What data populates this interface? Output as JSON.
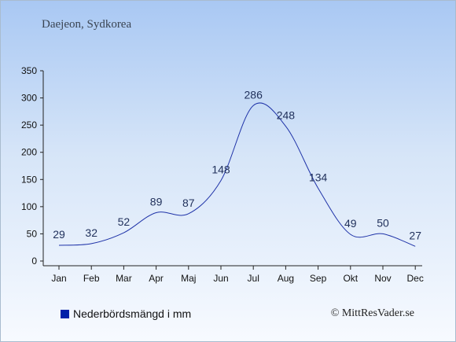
{
  "title": "Daejeon, Sydkorea",
  "credit": "© MittResVader.se",
  "legend": {
    "label": "Nederbördsmängd i mm",
    "color": "#0020a8"
  },
  "colors": {
    "line": "#1f33a8",
    "axis": "#222222"
  },
  "chart_data": {
    "type": "line",
    "categories": [
      "Jan",
      "Feb",
      "Mar",
      "Apr",
      "Maj",
      "Jun",
      "Jul",
      "Aug",
      "Sep",
      "Okt",
      "Nov",
      "Dec"
    ],
    "series": [
      {
        "name": "Nederbördsmängd i mm",
        "values": [
          29,
          32,
          52,
          89,
          87,
          148,
          286,
          248,
          134,
          49,
          50,
          27
        ]
      }
    ],
    "yticks": [
      0,
      50,
      100,
      150,
      200,
      250,
      300,
      350
    ],
    "ylim": [
      0,
      350
    ],
    "grid": false,
    "legend_position": "bottom-left",
    "data_labels": true
  }
}
